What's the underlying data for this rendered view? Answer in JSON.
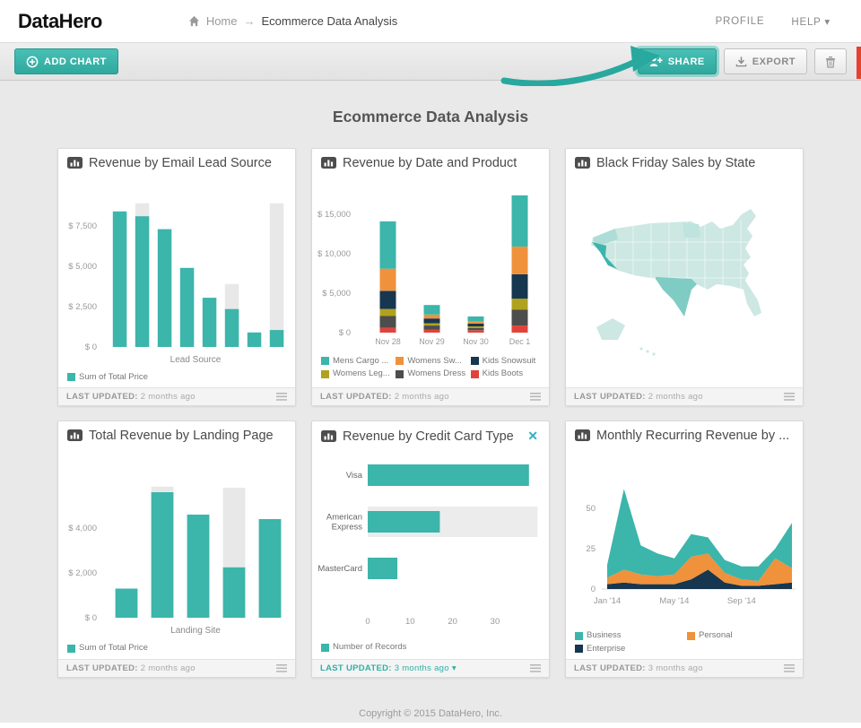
{
  "header": {
    "logo": "DataHero",
    "breadcrumb": {
      "home": "Home",
      "separator": "→",
      "current": "Ecommerce Data Analysis"
    },
    "nav": {
      "profile": "PROFILE",
      "help": "HELP",
      "help_caret": "▾"
    }
  },
  "toolbar": {
    "add_chart": "ADD CHART",
    "share": "SHARE",
    "export": "EXPORT"
  },
  "page": {
    "title": "Ecommerce Data Analysis",
    "copyright": "Copyright © 2015 DataHero, Inc."
  },
  "colors": {
    "teal": "#3cb5ab",
    "orange": "#f0913b",
    "navy": "#17364f",
    "yellow": "#b1a21d",
    "dark_gray": "#4d4d4d",
    "red": "#e2423a",
    "bar_bg": "#e8e8e8",
    "map_low": "#cde7e3",
    "map_mid": "#7fccc4",
    "map_high": "#3cb5ab",
    "edge_red": "#e8402f"
  },
  "cards": [
    {
      "title": "Revenue by Email Lead Source",
      "updated_label": "LAST UPDATED:",
      "updated_value": "2 months ago"
    },
    {
      "title": "Revenue by Date and Product",
      "updated_label": "LAST UPDATED:",
      "updated_value": "2 months ago"
    },
    {
      "title": "Black Friday Sales by State",
      "updated_label": "LAST UPDATED:",
      "updated_value": "2 months ago"
    },
    {
      "title": "Total Revenue by Landing Page",
      "updated_label": "LAST UPDATED:",
      "updated_value": "2 months ago"
    },
    {
      "title": "Revenue by Credit Card Type",
      "updated_label": "LAST UPDATED:",
      "updated_value": "3 months ago",
      "dropdown_caret": "▾",
      "closeable": true
    },
    {
      "title": "Monthly Recurring Revenue by ...",
      "updated_label": "LAST UPDATED:",
      "updated_value": "3 months ago"
    }
  ],
  "chart_data": [
    {
      "type": "bar",
      "title": "Revenue by Email Lead Source",
      "xlabel": "Lead Source",
      "ylim": [
        0,
        10000
      ],
      "yticks": [
        {
          "value": 0,
          "label": "$ 0"
        },
        {
          "value": 2500,
          "label": "$ 2,500"
        },
        {
          "value": 5000,
          "label": "$ 5,000"
        },
        {
          "value": 7500,
          "label": "$ 7,500"
        }
      ],
      "values": [
        8400,
        8100,
        7300,
        4900,
        3050,
        2350,
        900,
        1050
      ],
      "background_values": [
        null,
        8900,
        null,
        null,
        null,
        3900,
        null,
        8900
      ],
      "legend": [
        {
          "label": "Sum of Total Price",
          "color": "teal"
        }
      ]
    },
    {
      "type": "stacked_bar",
      "title": "Revenue by Date and Product",
      "categories": [
        "Nov 28",
        "Nov 29",
        "Nov 30",
        "Dec 1"
      ],
      "ylim": [
        0,
        17500
      ],
      "yticks": [
        {
          "value": 0,
          "label": "$ 0"
        },
        {
          "value": 5000,
          "label": "$ 5,000"
        },
        {
          "value": 10000,
          "label": "$ 10,000"
        },
        {
          "value": 15000,
          "label": "$ 15,000"
        }
      ],
      "series": [
        {
          "name": "Mens Cargo ...",
          "color": "teal",
          "values": [
            6000,
            1200,
            600,
            6500
          ]
        },
        {
          "name": "Womens Sw...",
          "color": "orange",
          "values": [
            2800,
            500,
            300,
            3500
          ]
        },
        {
          "name": "Kids Snowsuit",
          "color": "navy",
          "values": [
            2300,
            600,
            350,
            3100
          ]
        },
        {
          "name": "Womens Leg...",
          "color": "yellow",
          "values": [
            900,
            300,
            200,
            1400
          ]
        },
        {
          "name": "Womens Dress",
          "color": "dark_gray",
          "values": [
            1500,
            500,
            300,
            2000
          ]
        },
        {
          "name": "Kids Boots",
          "color": "red",
          "values": [
            600,
            400,
            300,
            900
          ]
        }
      ],
      "stack_bottom_up": [
        5,
        4,
        3,
        2,
        1,
        0
      ]
    },
    {
      "type": "map",
      "title": "Black Friday Sales by State",
      "region": "United States",
      "highlights": [
        {
          "state": "California",
          "intensity": "high"
        },
        {
          "state": "Texas",
          "intensity": "medium"
        }
      ],
      "base_intensity": "low"
    },
    {
      "type": "bar",
      "title": "Total Revenue by Landing Page",
      "xlabel": "Landing Site",
      "ylim": [
        0,
        6000
      ],
      "yticks": [
        {
          "value": 0,
          "label": "$ 0"
        },
        {
          "value": 2000,
          "label": "$ 2,000"
        },
        {
          "value": 4000,
          "label": "$ 4,000"
        }
      ],
      "values": [
        1300,
        5600,
        4600,
        2250,
        4400
      ],
      "background_values": [
        null,
        5850,
        null,
        5800,
        null
      ],
      "legend": [
        {
          "label": "Sum of Total Price",
          "color": "teal"
        }
      ]
    },
    {
      "type": "hbar",
      "title": "Revenue by Credit Card Type",
      "categories": [
        [
          "Visa"
        ],
        [
          "American",
          "Express"
        ],
        [
          "MasterCard"
        ]
      ],
      "values": [
        38,
        17,
        7
      ],
      "background_values": [
        null,
        40,
        null
      ],
      "xticks": [
        {
          "value": 0,
          "label": "0"
        },
        {
          "value": 10,
          "label": "10"
        },
        {
          "value": 20,
          "label": "20"
        },
        {
          "value": 30,
          "label": "30"
        }
      ],
      "legend": [
        {
          "label": "Number of Records",
          "color": "teal"
        }
      ]
    },
    {
      "type": "area",
      "title": "Monthly Recurring Revenue by ...",
      "x": [
        "Jan '14",
        "Feb '14",
        "Mar '14",
        "Apr '14",
        "May '14",
        "Jun '14",
        "Jul '14",
        "Aug '14",
        "Sep '14",
        "Oct '14",
        "Nov '14",
        "Dec '14"
      ],
      "xtick_indices": [
        0,
        4,
        8
      ],
      "yticks": [
        {
          "value": 0,
          "label": "0"
        },
        {
          "value": 25,
          "label": "25"
        },
        {
          "value": 50,
          "label": "50"
        }
      ],
      "series_bottom_up": [
        {
          "name": "Enterprise",
          "color": "navy",
          "values": [
            3,
            4,
            3,
            3,
            3,
            6,
            12,
            4,
            2,
            2,
            3,
            4
          ]
        },
        {
          "name": "Personal",
          "color": "orange",
          "values": [
            4,
            8,
            6,
            5,
            6,
            14,
            10,
            6,
            4,
            3,
            16,
            9
          ]
        },
        {
          "name": "Business",
          "color": "teal",
          "values": [
            8,
            50,
            18,
            14,
            10,
            14,
            10,
            8,
            8,
            9,
            6,
            28
          ]
        }
      ],
      "legend": [
        {
          "label": "Business",
          "color": "teal"
        },
        {
          "label": "Personal",
          "color": "orange"
        },
        {
          "label": "Enterprise",
          "color": "navy"
        }
      ]
    }
  ]
}
